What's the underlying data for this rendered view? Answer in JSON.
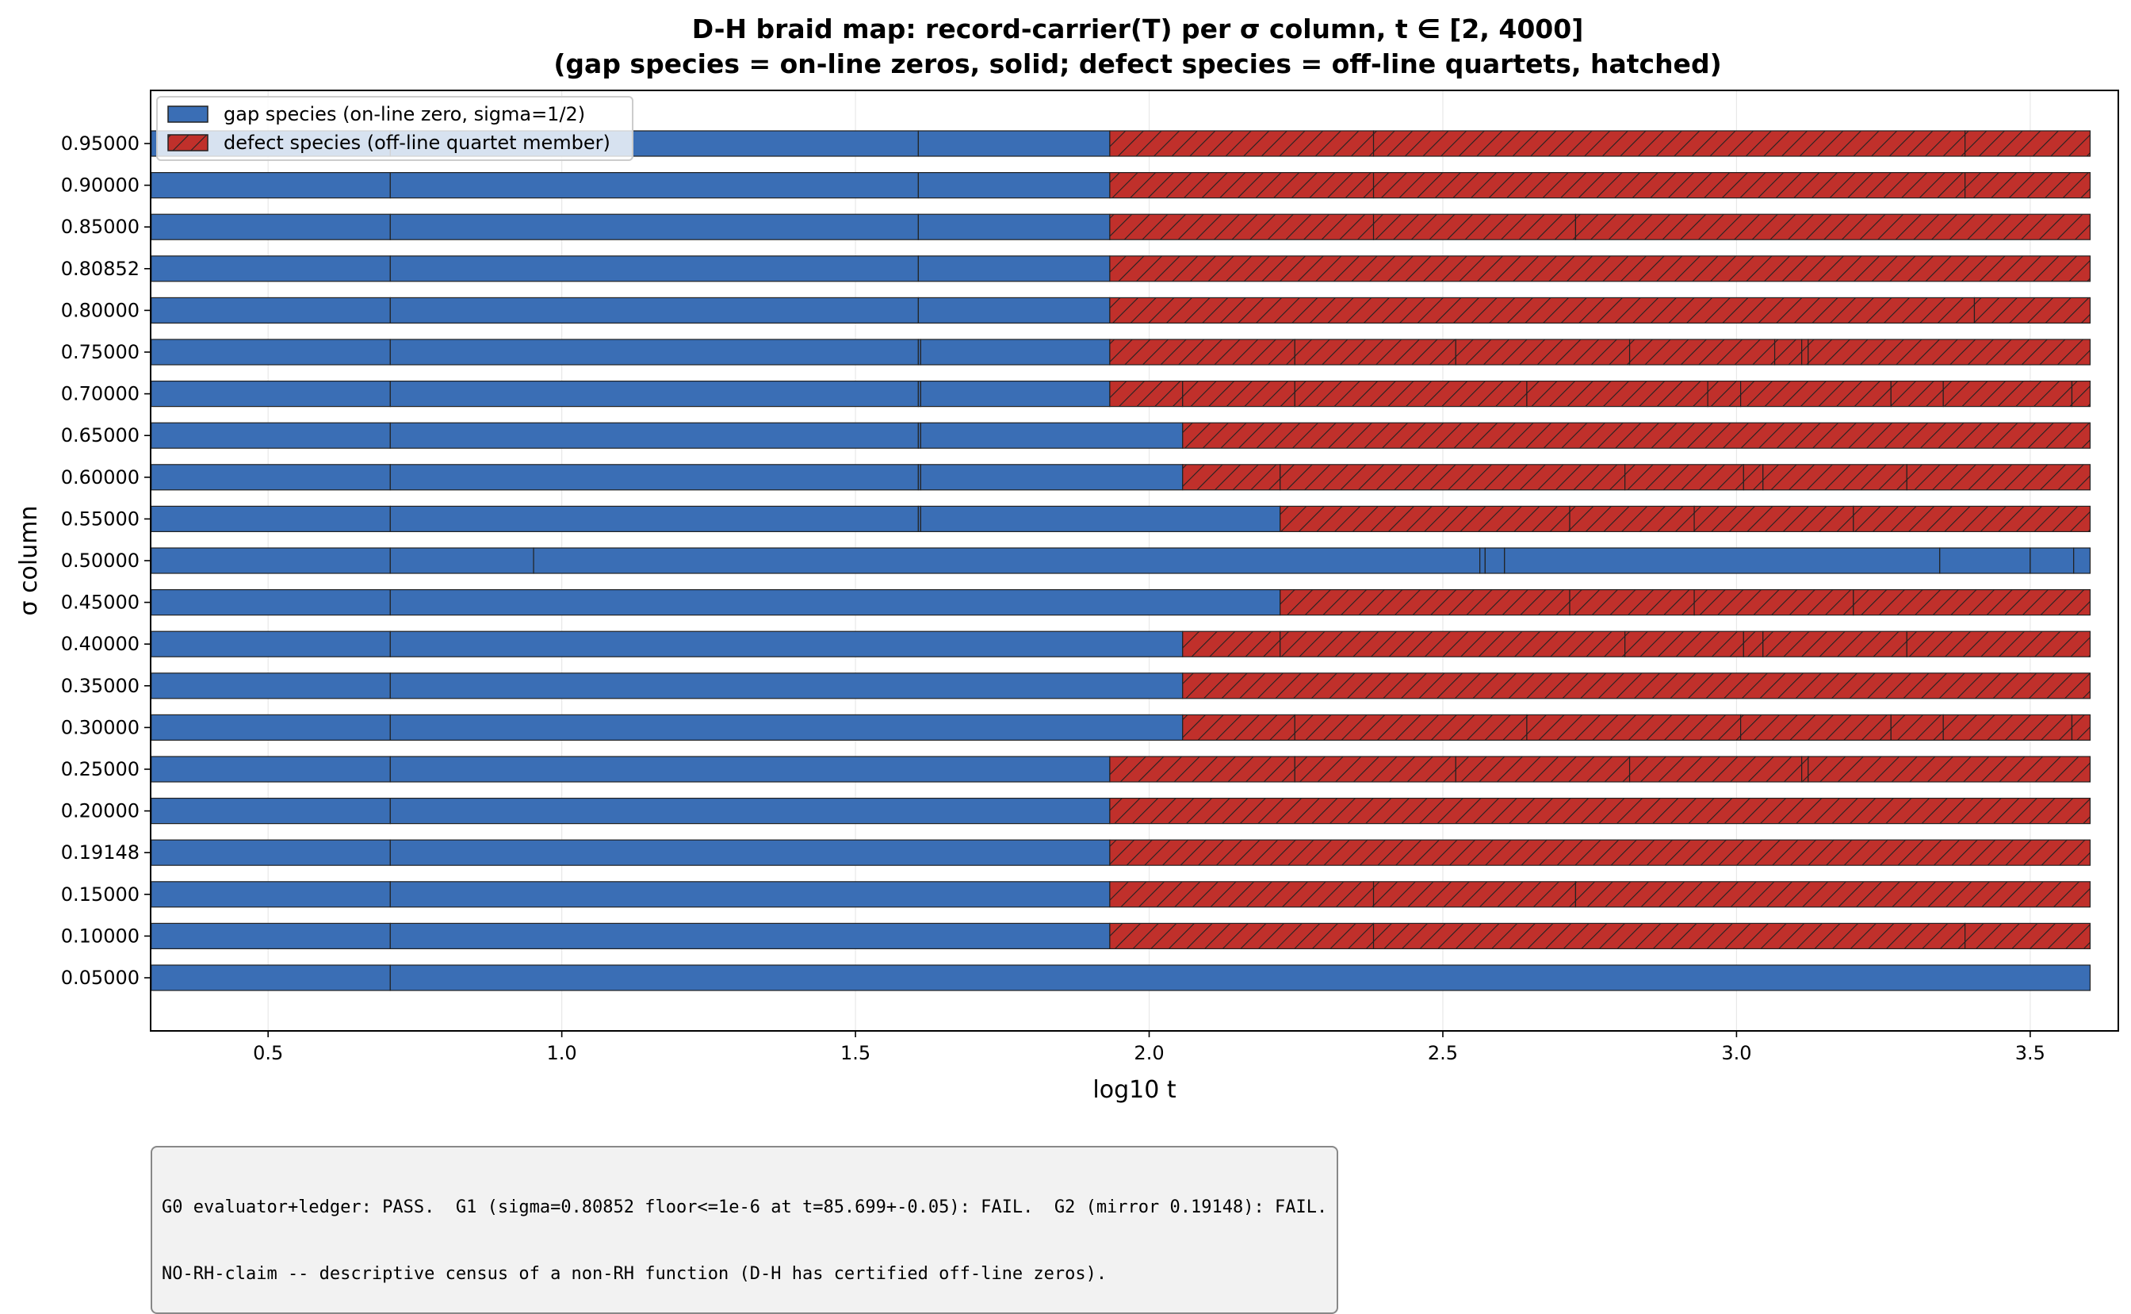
{
  "chart_data": {
    "type": "bar",
    "title_line1": "D-H braid map: record-carrier(T) per σ column, t ∈ [2, 4000]",
    "title_line2": "(gap species = on-line zeros, solid; defect species = off-line quartets, hatched)",
    "xlabel": "log10 t",
    "ylabel": "σ column",
    "xlim": [
      0.3,
      3.65
    ],
    "xticks": [
      "0.5",
      "1.0",
      "1.5",
      "2.0",
      "2.5",
      "3.0",
      "3.5"
    ],
    "xtick_values": [
      0.5,
      1.0,
      1.5,
      2.0,
      2.5,
      3.0,
      3.5
    ],
    "x_start": 0.301,
    "x_end": 3.602,
    "legend_position": "upper-left",
    "legend": [
      {
        "key": "gap",
        "label": "gap species (on-line zero, sigma=1/2)"
      },
      {
        "key": "defect",
        "label": "defect species (off-line quartet member)"
      }
    ],
    "colors": {
      "gap": "#3a6eb5",
      "defect": "#c0302b",
      "edge": "#222222",
      "note_bg": "#f2f2f2"
    },
    "rows": [
      {
        "sigma": "0.95000",
        "gap_breaks": [
          0.708,
          1.607
        ],
        "defect_start": 1.933,
        "defect_breaks": [
          2.382,
          3.389
        ]
      },
      {
        "sigma": "0.90000",
        "gap_breaks": [
          0.708,
          1.607
        ],
        "defect_start": 1.933,
        "defect_breaks": [
          2.382,
          3.389
        ]
      },
      {
        "sigma": "0.85000",
        "gap_breaks": [
          0.708,
          1.607
        ],
        "defect_start": 1.933,
        "defect_breaks": [
          2.382,
          2.726
        ]
      },
      {
        "sigma": "0.80852",
        "gap_breaks": [
          0.708,
          1.607
        ],
        "defect_start": 1.933,
        "defect_breaks": []
      },
      {
        "sigma": "0.80000",
        "gap_breaks": [
          0.708,
          1.607
        ],
        "defect_start": 1.933,
        "defect_breaks": [
          3.405
        ]
      },
      {
        "sigma": "0.75000",
        "gap_breaks": [
          0.708,
          1.607,
          1.611
        ],
        "defect_start": 1.933,
        "defect_breaks": [
          2.248,
          2.522,
          2.818,
          3.065,
          3.111,
          3.122
        ]
      },
      {
        "sigma": "0.70000",
        "gap_breaks": [
          0.708,
          1.607,
          1.611
        ],
        "defect_start": 1.933,
        "defect_breaks": [
          2.057,
          2.248,
          2.643,
          2.951,
          3.007,
          3.263,
          3.352,
          3.571
        ]
      },
      {
        "sigma": "0.65000",
        "gap_breaks": [
          0.708,
          1.607,
          1.611
        ],
        "defect_start": 2.057,
        "defect_breaks": []
      },
      {
        "sigma": "0.60000",
        "gap_breaks": [
          0.708,
          1.607,
          1.611
        ],
        "defect_start": 2.057,
        "defect_breaks": [
          2.223,
          2.81,
          3.012,
          3.045,
          3.29
        ]
      },
      {
        "sigma": "0.55000",
        "gap_breaks": [
          0.708,
          1.607,
          1.611
        ],
        "defect_start": 2.223,
        "defect_breaks": [
          2.716,
          2.928,
          3.199
        ]
      },
      {
        "sigma": "0.50000",
        "gap_breaks": [
          0.708,
          0.952,
          2.563,
          2.572,
          2.605,
          3.346,
          3.5,
          3.574
        ],
        "defect_start": null,
        "defect_breaks": []
      },
      {
        "sigma": "0.45000",
        "gap_breaks": [
          0.708
        ],
        "defect_start": 2.223,
        "defect_breaks": [
          2.716,
          2.928,
          3.199
        ]
      },
      {
        "sigma": "0.40000",
        "gap_breaks": [
          0.708
        ],
        "defect_start": 2.057,
        "defect_breaks": [
          2.223,
          2.81,
          3.012,
          3.045,
          3.29
        ]
      },
      {
        "sigma": "0.35000",
        "gap_breaks": [
          0.708
        ],
        "defect_start": 2.057,
        "defect_breaks": []
      },
      {
        "sigma": "0.30000",
        "gap_breaks": [
          0.708
        ],
        "defect_start": 2.057,
        "defect_breaks": [
          2.248,
          2.643,
          3.007,
          3.263,
          3.352,
          3.571
        ]
      },
      {
        "sigma": "0.25000",
        "gap_breaks": [
          0.708
        ],
        "defect_start": 1.933,
        "defect_breaks": [
          2.248,
          2.522,
          2.818,
          3.111,
          3.122
        ]
      },
      {
        "sigma": "0.20000",
        "gap_breaks": [
          0.708
        ],
        "defect_start": 1.933,
        "defect_breaks": []
      },
      {
        "sigma": "0.19148",
        "gap_breaks": [
          0.708
        ],
        "defect_start": 1.933,
        "defect_breaks": []
      },
      {
        "sigma": "0.15000",
        "gap_breaks": [
          0.708
        ],
        "defect_start": 1.933,
        "defect_breaks": [
          2.382,
          2.726
        ]
      },
      {
        "sigma": "0.10000",
        "gap_breaks": [
          0.708
        ],
        "defect_start": 1.933,
        "defect_breaks": [
          2.382,
          3.389
        ]
      },
      {
        "sigma": "0.05000",
        "gap_breaks": [
          0.708
        ],
        "defect_start": null,
        "defect_breaks": []
      }
    ]
  },
  "note": {
    "line1": "G0 evaluator+ledger: PASS.  G1 (sigma=0.80852 floor<=1e-6 at t=85.699+-0.05): FAIL.  G2 (mirror 0.19148): FAIL.",
    "line2": "NO-RH-claim -- descriptive census of a non-RH function (D-H has certified off-line zeros)."
  }
}
